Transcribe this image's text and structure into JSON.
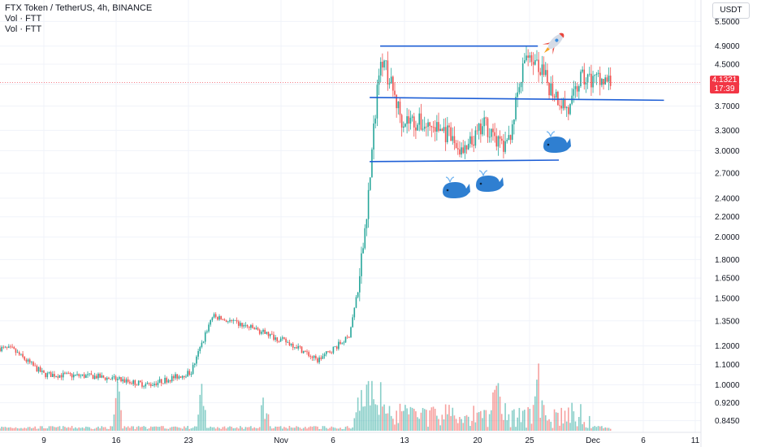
{
  "header": {
    "title": "FTX Token / TetherUS, 4h, BINANCE",
    "indicator1": "Vol · FTT",
    "indicator2": "Vol · FTT"
  },
  "currency_button": "USDT",
  "last_price": {
    "value": "4.1321",
    "countdown": "17:39"
  },
  "colors": {
    "up": "#26a69a",
    "down": "#ef5350",
    "line": "#1e5fd6",
    "price_line": "#f23645"
  },
  "annotations": {
    "whale": "whale-icon",
    "rocket": "rocket-icon"
  },
  "chart_data": {
    "type": "candlestick",
    "y_scale": "log",
    "ylim": [
      0.8,
      5.9
    ],
    "y_ticks": [
      "5.5000",
      "4.9000",
      "4.5000",
      "4.1000",
      "3.7000",
      "3.3000",
      "3.0000",
      "2.7000",
      "2.4000",
      "2.2000",
      "2.0000",
      "1.8000",
      "1.6500",
      "1.5000",
      "1.3500",
      "1.2000",
      "1.1000",
      "1.0000",
      "0.9200",
      "0.8450"
    ],
    "x_ticks": [
      "9",
      "16",
      "23",
      "Nov",
      "6",
      "13",
      "20",
      "25",
      "Dec",
      "6",
      "11"
    ],
    "price_path_anchors": [
      {
        "x": "Oct 3",
        "price": 1.2
      },
      {
        "x": "Oct 6",
        "price": 1.18
      },
      {
        "x": "Oct 9",
        "price": 1.05
      },
      {
        "x": "Oct 14",
        "price": 1.04
      },
      {
        "x": "Oct 19",
        "price": 1.0
      },
      {
        "x": "Oct 23",
        "price": 1.06
      },
      {
        "x": "Oct 25",
        "price": 1.38
      },
      {
        "x": "Oct 29",
        "price": 1.3
      },
      {
        "x": "Nov 2",
        "price": 1.2
      },
      {
        "x": "Nov 4",
        "price": 1.12
      },
      {
        "x": "Nov 7",
        "price": 1.25
      },
      {
        "x": "Nov 8",
        "price": 1.6
      },
      {
        "x": "Nov 9",
        "price": 2.6
      },
      {
        "x": "Nov 10",
        "price": 4.8
      },
      {
        "x": "Nov 12",
        "price": 3.5
      },
      {
        "x": "Nov 16",
        "price": 3.3
      },
      {
        "x": "Nov 18",
        "price": 2.95
      },
      {
        "x": "Nov 20",
        "price": 3.4
      },
      {
        "x": "Nov 22",
        "price": 3.0
      },
      {
        "x": "Nov 24",
        "price": 4.8
      },
      {
        "x": "Nov 26",
        "price": 4.1
      },
      {
        "x": "Nov 28",
        "price": 3.6
      },
      {
        "x": "Nov 29",
        "price": 4.2
      },
      {
        "x": "Dec 2",
        "price": 4.13
      }
    ],
    "trendlines": [
      {
        "name": "resistance",
        "from": {
          "x": "Nov 10",
          "price": 4.9
        },
        "to": {
          "x": "Nov 25",
          "price": 4.9
        }
      },
      {
        "name": "mid",
        "from": {
          "x": "Nov 9",
          "price": 3.85
        },
        "to": {
          "x": "Dec 7",
          "price": 3.8
        }
      },
      {
        "name": "support",
        "from": {
          "x": "Nov 9",
          "price": 2.85
        },
        "to": {
          "x": "Nov 27",
          "price": 2.87
        }
      }
    ],
    "volume_spikes": [
      "Oct 16",
      "Oct 24",
      "Oct 30",
      "Nov 8",
      "Nov 9",
      "Nov 10",
      "Nov 21",
      "Nov 25"
    ]
  }
}
